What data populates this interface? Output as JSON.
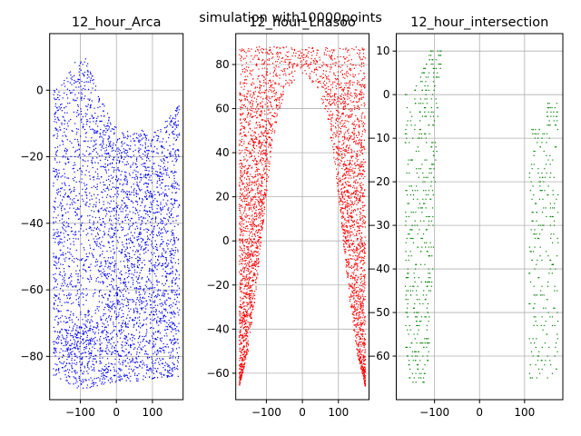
{
  "figure": {
    "suptitle": "simulation with10000points"
  },
  "chart_data": [
    {
      "type": "scatter",
      "title": "12_hour_Arca",
      "xlabel": "",
      "ylabel": "",
      "color": "#0000ff",
      "grid": true,
      "xlim": [
        -185,
        185
      ],
      "ylim": [
        -93,
        17
      ],
      "xticks": [
        -100,
        0,
        100
      ],
      "yticks": [
        -80,
        -60,
        -40,
        -20,
        0
      ],
      "tick_labels_x": [
        "−100",
        "0",
        "100"
      ],
      "tick_labels_y": [
        "−80",
        "−60",
        "−40",
        "−20",
        "0"
      ],
      "x_range": [
        -175,
        175
      ],
      "upper_boundary": [
        [
          -175,
          0
        ],
        [
          -150,
          2
        ],
        [
          -125,
          7
        ],
        [
          -100,
          11
        ],
        [
          -80,
          9
        ],
        [
          -60,
          3
        ],
        [
          -40,
          -3
        ],
        [
          -20,
          -8
        ],
        [
          0,
          -11
        ],
        [
          20,
          -12
        ],
        [
          60,
          -12
        ],
        [
          100,
          -12
        ],
        [
          120,
          -11
        ],
        [
          140,
          -9
        ],
        [
          160,
          -6
        ],
        [
          175,
          -2
        ]
      ],
      "lower_boundary": [
        [
          -175,
          -86
        ],
        [
          -100,
          -90
        ],
        [
          0,
          -88
        ],
        [
          100,
          -87
        ],
        [
          175,
          -86
        ]
      ],
      "dense_cluster": {
        "x": -100,
        "y": -78,
        "note": "denser points"
      },
      "n_points": 10000
    },
    {
      "type": "scatter",
      "title": "12_hour_Lhasoo",
      "xlabel": "",
      "ylabel": "",
      "color": "#ff0000",
      "grid": true,
      "xlim": [
        -185,
        185
      ],
      "ylim": [
        -72,
        94
      ],
      "xticks": [
        -100,
        0,
        100
      ],
      "yticks": [
        -60,
        -40,
        -20,
        0,
        20,
        40,
        60,
        80
      ],
      "tick_labels_x": [
        "−100",
        "0",
        "100"
      ],
      "tick_labels_y": [
        "−60",
        "−40",
        "−20",
        "0",
        "20",
        "40",
        "60",
        "80"
      ],
      "upper_boundary": [
        [
          -175,
          88
        ],
        [
          175,
          88
        ]
      ],
      "inner_boundary": [
        [
          -175,
          -66
        ],
        [
          -150,
          -50
        ],
        [
          -130,
          -25
        ],
        [
          -110,
          5
        ],
        [
          -90,
          35
        ],
        [
          -70,
          55
        ],
        [
          -40,
          70
        ],
        [
          0,
          76
        ],
        [
          40,
          70
        ],
        [
          70,
          55
        ],
        [
          90,
          35
        ],
        [
          110,
          5
        ],
        [
          130,
          -25
        ],
        [
          150,
          -50
        ],
        [
          175,
          -66
        ]
      ],
      "outer_left": [
        [
          -175,
          -66
        ],
        [
          -175,
          88
        ]
      ],
      "outer_right": [
        [
          175,
          -66
        ],
        [
          175,
          88
        ]
      ],
      "n_points": 10000
    },
    {
      "type": "scatter",
      "title": "12_hour_intersection",
      "xlabel": "",
      "ylabel": "",
      "color": "#008000",
      "grid": true,
      "xlim": [
        -185,
        185
      ],
      "ylim": [
        -70,
        14
      ],
      "xticks": [
        -100,
        0,
        100
      ],
      "yticks": [
        -60,
        -50,
        -40,
        -30,
        -20,
        -10,
        0,
        10
      ],
      "tick_labels_x": [
        "−100",
        "0",
        "100"
      ],
      "tick_labels_y": [
        "−60",
        "−50",
        "−40",
        "−30",
        "−20",
        "−10",
        "0",
        "10"
      ],
      "y_rows": [
        10,
        9,
        8,
        7,
        6,
        5,
        4,
        3,
        2,
        1,
        0,
        -1,
        -2,
        -3,
        -4,
        -5,
        -6,
        -7,
        -8,
        -9,
        -10,
        -11,
        -12,
        -13,
        -14,
        -15,
        -16,
        -17,
        -18,
        -19,
        -20,
        -21,
        -22,
        -23,
        -24,
        -25,
        -26,
        -27,
        -28,
        -29,
        -30,
        -31,
        -32,
        -33,
        -34,
        -35,
        -36,
        -37,
        -38,
        -39,
        -40,
        -41,
        -42,
        -43,
        -44,
        -45,
        -46,
        -47,
        -48,
        -49,
        -50,
        -51,
        -52,
        -53,
        -54,
        -55,
        -56,
        -57,
        -58,
        -59,
        -60,
        -61,
        -62,
        -63,
        -64,
        -65,
        -66
      ],
      "left_band": {
        "top_y": 10,
        "bottom_y": -66
      },
      "right_band": {
        "top_y": -2,
        "bottom_y": -65
      },
      "n_points": 10000
    }
  ]
}
